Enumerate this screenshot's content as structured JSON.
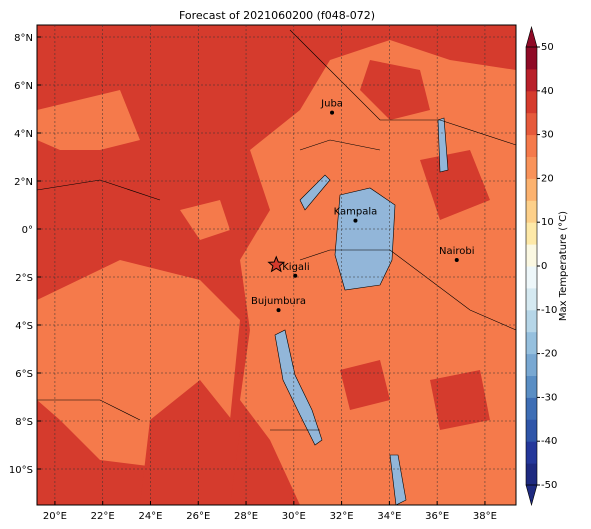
{
  "map": {
    "title": "Forecast of 2021060200 (f048-072)",
    "lon_range": [
      19.25,
      39.3
    ],
    "lat_range": [
      -11.5,
      8.5
    ],
    "lon_ticks": [
      {
        "value": 20,
        "label": "20°E"
      },
      {
        "value": 22,
        "label": "22°E"
      },
      {
        "value": 24,
        "label": "24°E"
      },
      {
        "value": 26,
        "label": "26°E"
      },
      {
        "value": 28,
        "label": "28°E"
      },
      {
        "value": 30,
        "label": "30°E"
      },
      {
        "value": 32,
        "label": "32°E"
      },
      {
        "value": 34,
        "label": "34°E"
      },
      {
        "value": 36,
        "label": "36°E"
      },
      {
        "value": 38,
        "label": "38°E"
      }
    ],
    "lat_ticks": [
      {
        "value": 8,
        "label": "8°N"
      },
      {
        "value": 6,
        "label": "6°N"
      },
      {
        "value": 4,
        "label": "4°N"
      },
      {
        "value": 2,
        "label": "2°N"
      },
      {
        "value": 0,
        "label": "0°"
      },
      {
        "value": -2,
        "label": "2°S"
      },
      {
        "value": -4,
        "label": "4°S"
      },
      {
        "value": -6,
        "label": "6°S"
      },
      {
        "value": -8,
        "label": "8°S"
      },
      {
        "value": -10,
        "label": "10°S"
      }
    ],
    "grid": true,
    "cities": [
      {
        "label": "Juba",
        "lon": 31.6,
        "lat": 4.85
      },
      {
        "label": "Kampala",
        "lon": 32.58,
        "lat": 0.35
      },
      {
        "label": "Nairobi",
        "lon": 36.82,
        "lat": -1.29
      },
      {
        "label": "Kigali",
        "lon": 30.06,
        "lat": -1.95
      },
      {
        "label": "Bujumbura",
        "lon": 29.36,
        "lat": -3.38
      }
    ],
    "colorbar": {
      "label": "Max Temperature (°C)",
      "range": [
        -50,
        50
      ],
      "ticks": [
        50,
        40,
        30,
        20,
        10,
        0,
        -10,
        -20,
        -30,
        -40,
        -50
      ],
      "colors": [
        "#1e2a80",
        "#24379a",
        "#2f55a8",
        "#3e6eb5",
        "#5a8ec4",
        "#79a8d2",
        "#96c0de",
        "#b6d6e8",
        "#d5e9f1",
        "#eef7fa",
        "#fbf8e2",
        "#fee9a8",
        "#fdd08a",
        "#fcb26f",
        "#f9935a",
        "#f57a4b",
        "#e65a3b",
        "#d53b2d",
        "#b8202a",
        "#8f0a26"
      ]
    }
  }
}
